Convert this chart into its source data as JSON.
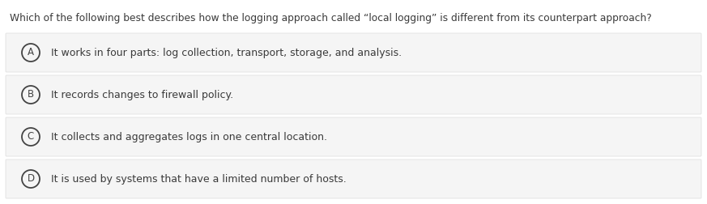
{
  "question": "Which of the following best describes how the logging approach called “local logging” is different from its counterpart approach?",
  "options": [
    {
      "label": "A",
      "text": "It works in four parts: log collection, transport, storage, and analysis."
    },
    {
      "label": "B",
      "text": "It records changes to firewall policy."
    },
    {
      "label": "C",
      "text": "It collects and aggregates logs in one central location."
    },
    {
      "label": "D",
      "text": "It is used by systems that have a limited number of hosts."
    }
  ],
  "bg_color": "#ffffff",
  "option_bg_color": "#f5f5f5",
  "option_border_color": "#e0e0e0",
  "text_color": "#3a3a3a",
  "circle_edge_color": "#444444",
  "question_fontsize": 8.8,
  "option_fontsize": 9.0,
  "label_fontsize": 8.5,
  "fig_width": 8.73,
  "fig_height": 2.52,
  "dpi": 100
}
